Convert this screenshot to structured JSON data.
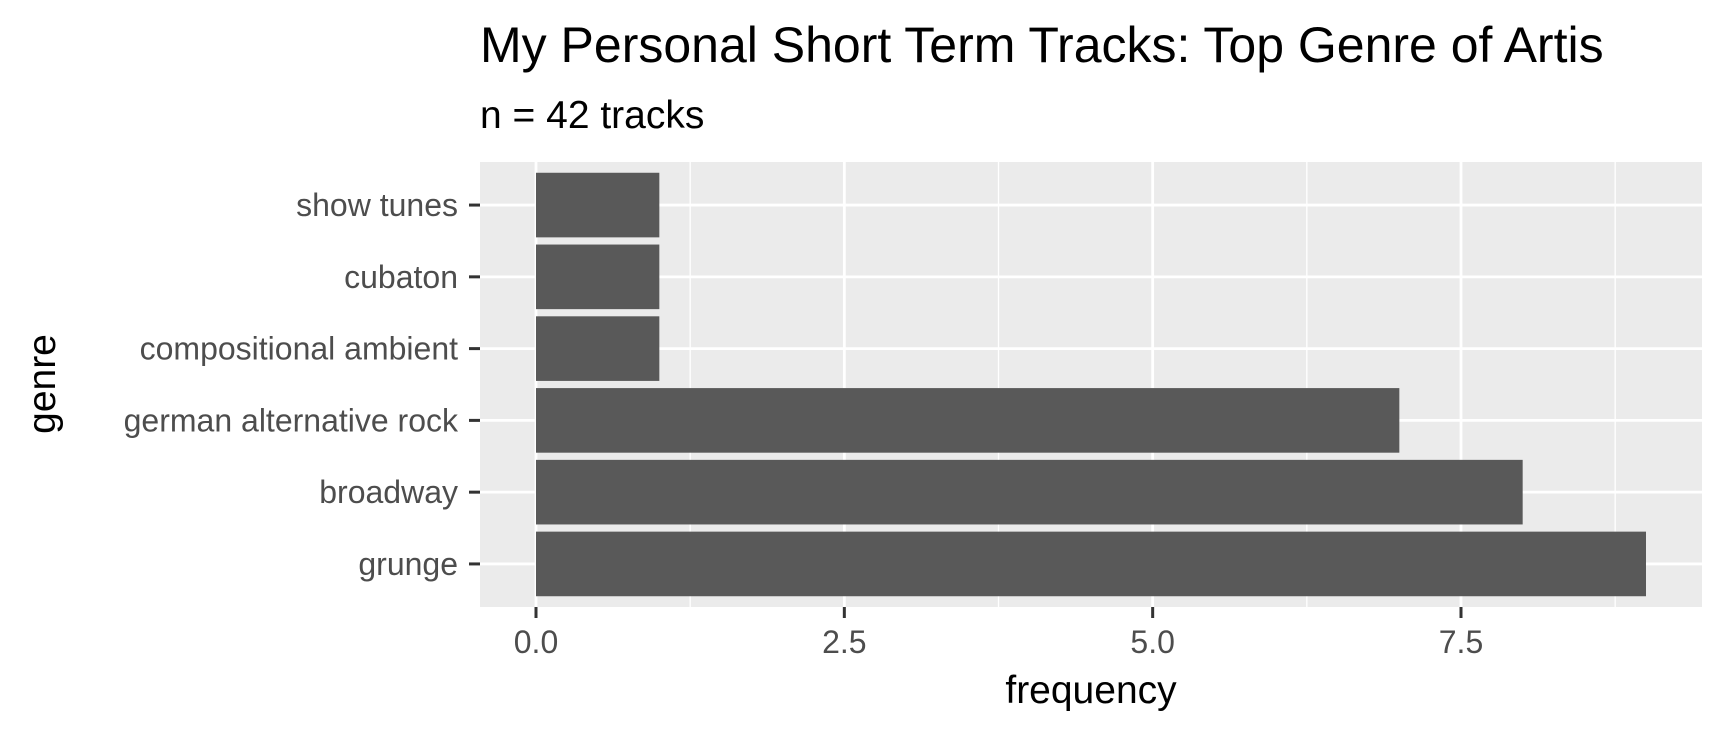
{
  "chart_data": {
    "type": "bar",
    "orientation": "horizontal",
    "title": "My Personal Short Term Tracks: Top Genre of Artis",
    "subtitle": "n = 42 tracks",
    "xlabel": "frequency",
    "ylabel": "genre",
    "categories": [
      "show tunes",
      "cubaton",
      "compositional ambient",
      "german alternative rock",
      "broadway",
      "grunge"
    ],
    "values": [
      1,
      1,
      1,
      7,
      8,
      9
    ],
    "x_ticks": [
      0,
      2.5,
      5,
      7.5
    ],
    "x_tick_labels": [
      "0.0",
      "2.5",
      "5.0",
      "7.5"
    ],
    "xlim": [
      -0.45,
      9.45
    ],
    "grid": true,
    "legend": "none",
    "colors": {
      "panel_background": "#ebebeb",
      "grid": "#ffffff",
      "bar": "#595959",
      "tick_text": "#4d4d4d",
      "tick_mark": "#333333"
    }
  }
}
